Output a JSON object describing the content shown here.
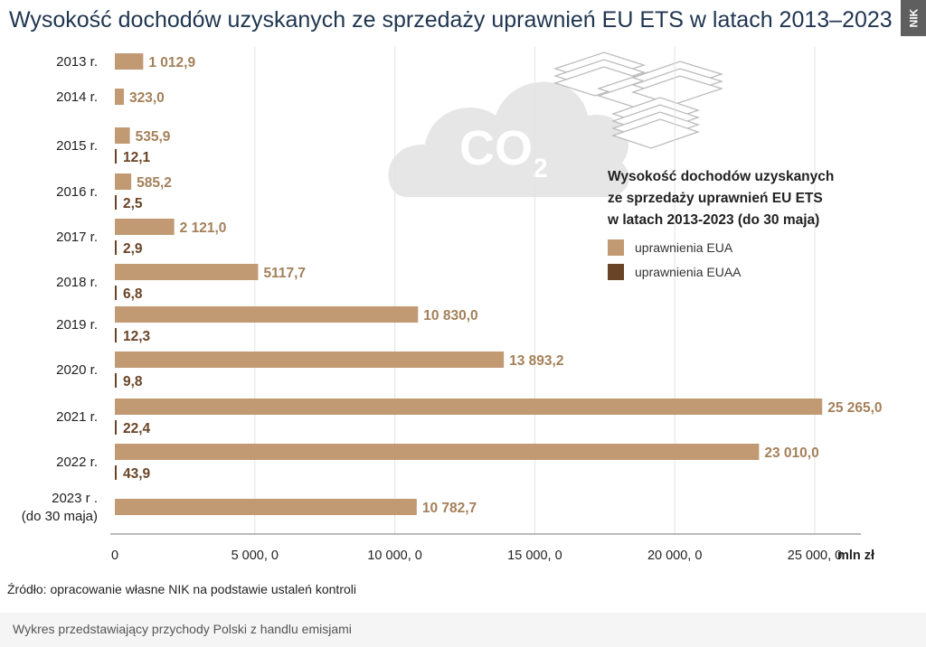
{
  "page": {
    "title": "Wysokość dochodów uzyskanych ze sprzedaży uprawnień EU ETS w latach 2013–2023",
    "badge": "NIK",
    "source": "Źródło: opracowanie własne NIK na podstawie ustaleń kontroli",
    "caption": "Wykres przedstawiający przychody Polski z handlu emisjami",
    "illustration": {
      "co2_label": "CO",
      "co2_subscript": "2"
    }
  },
  "colors": {
    "eua": "#c19a73",
    "euaa": "#6a4427",
    "value_text": "#a4805a",
    "grid": "#e3e3e3",
    "cloud": "#e6e6e6"
  },
  "chart_data": {
    "type": "bar",
    "orientation": "horizontal",
    "title": "Wysokość dochodów uzyskanych ze sprzedaży uprawnień EU ETS w latach 2013-2023 (do 30 maja)",
    "title_lines": [
      "Wysokość dochodów uzyskanych",
      "ze sprzedaży uprawnień EU ETS",
      "w latach 2013-2023 (do 30 maja)"
    ],
    "categories": [
      "2013 r.",
      "2014 r.",
      "2015 r.",
      "2016 r.",
      "2017 r.",
      "2018 r.",
      "2019 r.",
      "2020 r.",
      "2021 r.",
      "2022 r.",
      "2023 r .\n(do 30 maja)"
    ],
    "series": [
      {
        "name": "uprawnienia EUA",
        "color": "#c19a73",
        "values": [
          1012.9,
          323.0,
          535.9,
          585.2,
          2121.0,
          5117.7,
          10830.0,
          13893.2,
          25265.0,
          23010.0,
          10782.7
        ],
        "labels": [
          "1 012,9",
          "323,0",
          "535,9",
          "585,2",
          "2 121,0",
          "5117,7",
          "10 830,0",
          "13 893,2",
          "25 265,0",
          "23 010,0",
          "10 782,7"
        ]
      },
      {
        "name": "uprawnienia EUAA",
        "color": "#6a4427",
        "values": [
          null,
          null,
          12.1,
          2.5,
          2.9,
          6.8,
          12.3,
          9.8,
          22.4,
          43.9,
          null
        ],
        "labels": [
          null,
          null,
          "12,1",
          "2,5",
          "2,9",
          "6,8",
          "12,3",
          "9,8",
          "22,4",
          "43,9",
          null
        ]
      }
    ],
    "xlim": [
      0,
      27000
    ],
    "xticks": [
      0,
      5000,
      10000,
      15000,
      20000,
      25000
    ],
    "xtick_labels": [
      "0",
      "5 000, 0",
      "10 000, 0",
      "15 000, 0",
      "20 000, 0",
      "25 000, 0"
    ],
    "xunit": "mln zł",
    "grid": true,
    "legend_position": "right"
  }
}
